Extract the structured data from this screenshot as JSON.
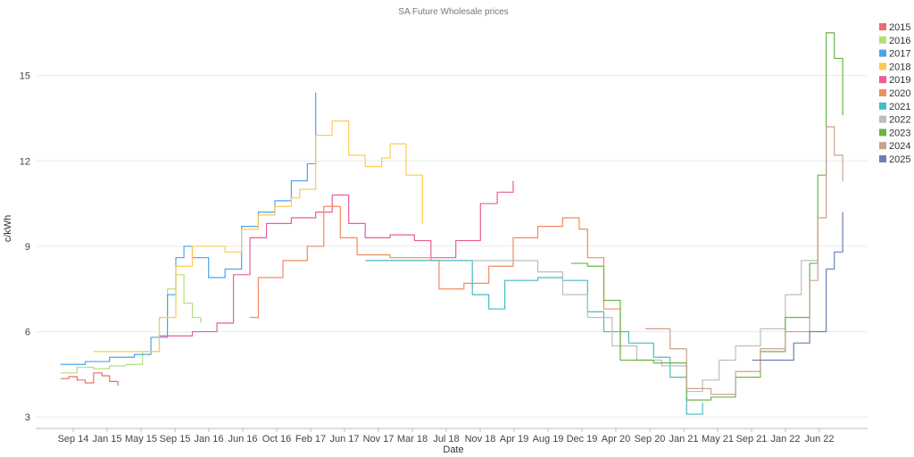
{
  "chart_data": {
    "type": "line",
    "title": "SA Future Wholesale prices",
    "xlabel": "Date",
    "ylabel": "c/kWh",
    "x_tick_labels": [
      "Sep 14",
      "Jan 15",
      "May 15",
      "Sep 15",
      "Jan 16",
      "Jun 16",
      "Oct 16",
      "Feb 17",
      "Jun 17",
      "Nov 17",
      "Mar 18",
      "Jul 18",
      "Nov 18",
      "Apr 19",
      "Aug 19",
      "Dec 19",
      "Apr 20",
      "Sep 20",
      "Jan 21",
      "May 21",
      "Sep 21",
      "Jan 22",
      "Jun 22"
    ],
    "y_ticks": [
      3,
      6,
      9,
      12,
      15
    ],
    "ylim": [
      2.6,
      16.9
    ],
    "xlim": [
      "2014-06-01",
      "2022-11-01"
    ],
    "grid": "horizontal",
    "legend_position": "right",
    "series": [
      {
        "name": "2015",
        "color": "#ef6b6b",
        "points": [
          [
            "2014-09-01",
            4.35
          ],
          [
            "2014-10-01",
            4.42
          ],
          [
            "2014-11-01",
            4.3
          ],
          [
            "2014-12-01",
            4.2
          ],
          [
            "2015-01-01",
            4.55
          ],
          [
            "2015-02-01",
            4.45
          ],
          [
            "2015-03-01",
            4.25
          ],
          [
            "2015-04-01",
            4.1
          ]
        ]
      },
      {
        "name": "2016",
        "color": "#b3e07a",
        "points": [
          [
            "2014-09-01",
            4.55
          ],
          [
            "2014-11-01",
            4.75
          ],
          [
            "2015-01-01",
            4.7
          ],
          [
            "2015-03-01",
            4.8
          ],
          [
            "2015-05-01",
            4.85
          ],
          [
            "2015-07-01",
            5.3
          ],
          [
            "2015-09-01",
            6.5
          ],
          [
            "2015-10-01",
            7.5
          ],
          [
            "2015-11-01",
            8.0
          ],
          [
            "2015-12-01",
            7.0
          ],
          [
            "2016-01-01",
            6.5
          ],
          [
            "2016-02-01",
            6.3
          ]
        ]
      },
      {
        "name": "2017",
        "color": "#4da3ea",
        "points": [
          [
            "2014-09-01",
            4.85
          ],
          [
            "2014-12-01",
            4.95
          ],
          [
            "2015-03-01",
            5.1
          ],
          [
            "2015-06-01",
            5.2
          ],
          [
            "2015-08-01",
            5.8
          ],
          [
            "2015-10-01",
            7.3
          ],
          [
            "2015-11-01",
            8.6
          ],
          [
            "2015-12-01",
            9.0
          ],
          [
            "2016-01-01",
            8.6
          ],
          [
            "2016-03-01",
            7.9
          ],
          [
            "2016-05-01",
            8.2
          ],
          [
            "2016-07-01",
            9.7
          ],
          [
            "2016-09-01",
            10.2
          ],
          [
            "2016-11-01",
            10.6
          ],
          [
            "2017-01-01",
            11.3
          ],
          [
            "2017-03-01",
            11.9
          ],
          [
            "2017-04-01",
            14.4
          ]
        ]
      },
      {
        "name": "2018",
        "color": "#fdca55",
        "points": [
          [
            "2015-01-01",
            5.3
          ],
          [
            "2015-06-01",
            5.3
          ],
          [
            "2015-09-01",
            6.5
          ],
          [
            "2015-11-01",
            8.3
          ],
          [
            "2016-01-01",
            9.0
          ],
          [
            "2016-05-01",
            8.8
          ],
          [
            "2016-07-01",
            9.6
          ],
          [
            "2016-09-01",
            10.1
          ],
          [
            "2016-11-01",
            10.4
          ],
          [
            "2017-01-01",
            10.7
          ],
          [
            "2017-02-01",
            11.0
          ],
          [
            "2017-04-01",
            12.9
          ],
          [
            "2017-06-01",
            13.4
          ],
          [
            "2017-08-01",
            12.2
          ],
          [
            "2017-10-01",
            11.8
          ],
          [
            "2017-12-01",
            12.1
          ],
          [
            "2018-01-01",
            12.6
          ],
          [
            "2018-03-01",
            11.5
          ],
          [
            "2018-05-01",
            9.8
          ]
        ]
      },
      {
        "name": "2019",
        "color": "#ec5d96",
        "points": [
          [
            "2015-09-01",
            5.85
          ],
          [
            "2016-01-01",
            6.0
          ],
          [
            "2016-04-01",
            6.3
          ],
          [
            "2016-06-01",
            8.0
          ],
          [
            "2016-08-01",
            9.3
          ],
          [
            "2016-10-01",
            9.8
          ],
          [
            "2017-01-01",
            10.0
          ],
          [
            "2017-04-01",
            10.2
          ],
          [
            "2017-06-01",
            10.8
          ],
          [
            "2017-08-01",
            9.8
          ],
          [
            "2017-10-01",
            9.3
          ],
          [
            "2018-01-01",
            9.4
          ],
          [
            "2018-04-01",
            9.2
          ],
          [
            "2018-06-01",
            8.6
          ],
          [
            "2018-09-01",
            9.2
          ],
          [
            "2018-12-01",
            10.5
          ],
          [
            "2019-02-01",
            10.9
          ],
          [
            "2019-04-01",
            11.3
          ]
        ]
      },
      {
        "name": "2020",
        "color": "#f18c5d",
        "points": [
          [
            "2016-08-01",
            6.5
          ],
          [
            "2016-09-01",
            7.9
          ],
          [
            "2016-12-01",
            8.5
          ],
          [
            "2017-03-01",
            9.0
          ],
          [
            "2017-05-01",
            10.4
          ],
          [
            "2017-07-01",
            9.3
          ],
          [
            "2017-09-01",
            8.7
          ],
          [
            "2018-01-01",
            8.6
          ],
          [
            "2018-06-01",
            8.5
          ],
          [
            "2018-07-01",
            7.5
          ],
          [
            "2018-10-01",
            7.7
          ],
          [
            "2019-01-01",
            8.3
          ],
          [
            "2019-04-01",
            9.3
          ],
          [
            "2019-07-01",
            9.7
          ],
          [
            "2019-10-01",
            10.0
          ],
          [
            "2019-12-01",
            9.6
          ],
          [
            "2020-01-01",
            8.6
          ],
          [
            "2020-03-01",
            6.8
          ],
          [
            "2020-05-01",
            5.4
          ]
        ]
      },
      {
        "name": "2021",
        "color": "#45bcc1",
        "points": [
          [
            "2017-10-01",
            8.5
          ],
          [
            "2018-08-01",
            8.5
          ],
          [
            "2018-11-01",
            7.3
          ],
          [
            "2019-01-01",
            6.8
          ],
          [
            "2019-03-01",
            7.8
          ],
          [
            "2019-07-01",
            7.9
          ],
          [
            "2019-10-01",
            7.8
          ],
          [
            "2020-01-01",
            6.7
          ],
          [
            "2020-03-01",
            6.0
          ],
          [
            "2020-06-01",
            5.6
          ],
          [
            "2020-09-01",
            5.1
          ],
          [
            "2020-11-01",
            4.4
          ],
          [
            "2021-01-01",
            3.1
          ],
          [
            "2021-03-01",
            3.5
          ]
        ]
      },
      {
        "name": "2022",
        "color": "#bdbdbd",
        "points": [
          [
            "2018-11-01",
            8.5
          ],
          [
            "2019-04-01",
            8.5
          ],
          [
            "2019-07-01",
            8.1
          ],
          [
            "2019-10-01",
            7.3
          ],
          [
            "2020-01-01",
            6.5
          ],
          [
            "2020-04-01",
            5.5
          ],
          [
            "2020-07-01",
            5.0
          ],
          [
            "2020-10-01",
            4.8
          ],
          [
            "2021-01-01",
            3.9
          ],
          [
            "2021-03-01",
            4.3
          ],
          [
            "2021-05-01",
            5.0
          ],
          [
            "2021-07-01",
            5.5
          ],
          [
            "2021-10-01",
            6.1
          ],
          [
            "2022-01-01",
            7.3
          ],
          [
            "2022-03-01",
            8.5
          ],
          [
            "2022-05-01",
            9.5
          ]
        ]
      },
      {
        "name": "2023",
        "color": "#6ab548",
        "points": [
          [
            "2019-11-01",
            8.4
          ],
          [
            "2020-01-01",
            8.3
          ],
          [
            "2020-03-01",
            7.1
          ],
          [
            "2020-05-01",
            5.0
          ],
          [
            "2020-09-01",
            4.9
          ],
          [
            "2021-01-01",
            3.6
          ],
          [
            "2021-04-01",
            3.7
          ],
          [
            "2021-07-01",
            4.4
          ],
          [
            "2021-10-01",
            5.3
          ],
          [
            "2022-01-01",
            6.5
          ],
          [
            "2022-04-01",
            8.4
          ],
          [
            "2022-05-01",
            11.5
          ],
          [
            "2022-06-01",
            16.5
          ],
          [
            "2022-07-01",
            15.6
          ],
          [
            "2022-08-01",
            13.6
          ]
        ]
      },
      {
        "name": "2024",
        "color": "#c9a18f",
        "points": [
          [
            "2020-08-01",
            6.1
          ],
          [
            "2020-11-01",
            5.4
          ],
          [
            "2021-01-01",
            4.0
          ],
          [
            "2021-04-01",
            3.8
          ],
          [
            "2021-07-01",
            4.6
          ],
          [
            "2021-10-01",
            5.4
          ],
          [
            "2022-01-01",
            6.0
          ],
          [
            "2022-04-01",
            7.8
          ],
          [
            "2022-05-01",
            10.0
          ],
          [
            "2022-06-01",
            13.2
          ],
          [
            "2022-07-01",
            12.2
          ],
          [
            "2022-08-01",
            11.3
          ]
        ]
      },
      {
        "name": "2025",
        "color": "#6d7fb4",
        "points": [
          [
            "2021-09-01",
            5.0
          ],
          [
            "2021-12-01",
            5.0
          ],
          [
            "2022-02-01",
            5.6
          ],
          [
            "2022-04-01",
            6.0
          ],
          [
            "2022-06-01",
            8.2
          ],
          [
            "2022-07-01",
            8.8
          ],
          [
            "2022-08-01",
            10.2
          ]
        ]
      }
    ]
  }
}
